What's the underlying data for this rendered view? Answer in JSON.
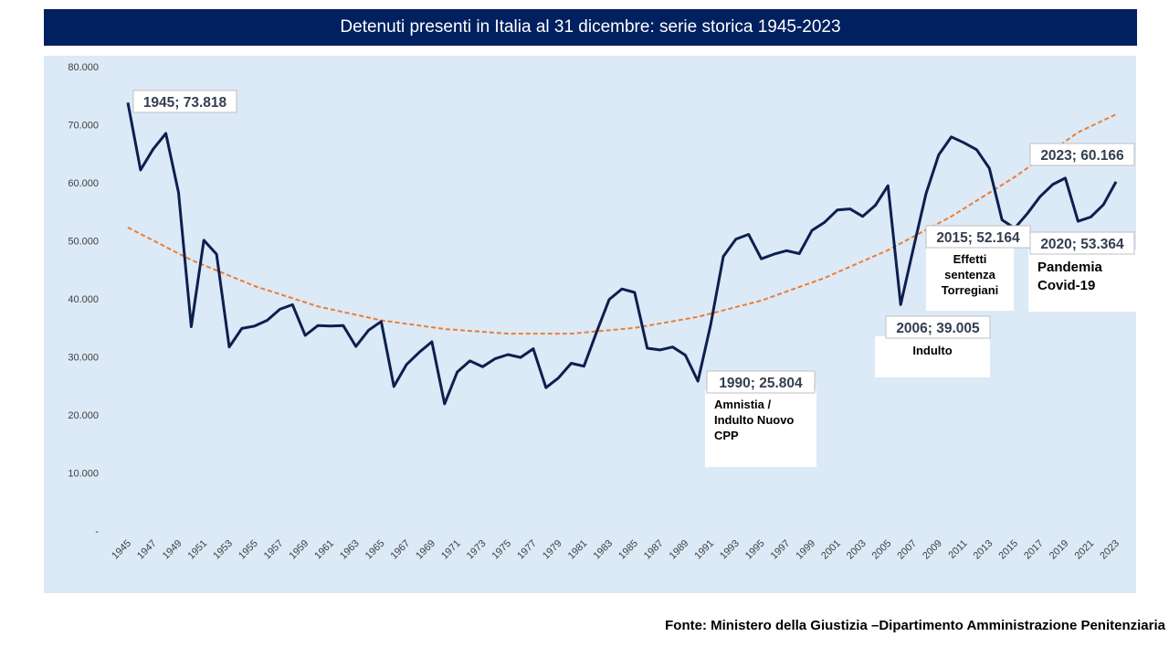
{
  "chart_data": {
    "type": "line",
    "title": "Detenuti presenti in Italia al 31 dicembre: serie storica 1945-2023",
    "source": "Fonte: Ministero della Giustizia –Dipartimento Amministrazione Penitenziaria",
    "xlabel": "",
    "ylabel": "",
    "ylim": [
      0,
      80000
    ],
    "y_ticks": [
      "-",
      "10.000",
      "20.000",
      "30.000",
      "40.000",
      "50.000",
      "60.000",
      "70.000",
      "80.000"
    ],
    "x_tick_labels": [
      "1945",
      "1947",
      "1949",
      "1951",
      "1953",
      "1955",
      "1957",
      "1959",
      "1961",
      "1963",
      "1965",
      "1967",
      "1969",
      "1971",
      "1973",
      "1975",
      "1977",
      "1979",
      "1981",
      "1983",
      "1985",
      "1987",
      "1989",
      "1991",
      "1993",
      "1995",
      "1997",
      "1999",
      "2001",
      "2003",
      "2005",
      "2007",
      "2009",
      "2011",
      "2013",
      "2015",
      "2017",
      "2019",
      "2021",
      "2023"
    ],
    "grid": false,
    "series": [
      {
        "color": "#0d1f4f",
        "x": [
          1945,
          1946,
          1947,
          1948,
          1949,
          1950,
          1951,
          1952,
          1953,
          1954,
          1955,
          1956,
          1957,
          1958,
          1959,
          1960,
          1961,
          1962,
          1963,
          1964,
          1965,
          1966,
          1967,
          1968,
          1969,
          1970,
          1971,
          1972,
          1973,
          1974,
          1975,
          1976,
          1977,
          1978,
          1979,
          1980,
          1981,
          1982,
          1983,
          1984,
          1985,
          1986,
          1987,
          1988,
          1989,
          1990,
          1991,
          1992,
          1993,
          1994,
          1995,
          1996,
          1997,
          1998,
          1999,
          2000,
          2001,
          2002,
          2003,
          2004,
          2005,
          2006,
          2007,
          2008,
          2009,
          2010,
          2011,
          2012,
          2013,
          2014,
          2015,
          2016,
          2017,
          2018,
          2019,
          2020,
          2021,
          2022,
          2023
        ],
        "y": [
          73818,
          62200,
          65800,
          68500,
          58300,
          35200,
          50100,
          47700,
          31700,
          34900,
          35300,
          36300,
          38200,
          39000,
          33700,
          35400,
          35300,
          35400,
          31800,
          34600,
          36100,
          24900,
          28700,
          30800,
          32600,
          21900,
          27400,
          29300,
          28300,
          29700,
          30400,
          29900,
          31400,
          24700,
          26400,
          28900,
          28400,
          34300,
          39900,
          41700,
          41100,
          31500,
          31200,
          31700,
          30300,
          25804,
          35500,
          47300,
          50300,
          51100,
          46900,
          47700,
          48300,
          47800,
          51800,
          53200,
          55300,
          55500,
          54200,
          56100,
          59500,
          39005,
          48700,
          58100,
          64800,
          67900,
          66900,
          65700,
          62500,
          53600,
          52164,
          54700,
          57600,
          59700,
          60800,
          53364,
          54100,
          56200,
          60166
        ]
      },
      {
        "name": "",
        "type": "trend",
        "color": "#ed7d31",
        "x": [
          1945,
          1950,
          1955,
          1960,
          1965,
          1970,
          1975,
          1980,
          1985,
          1990,
          1995,
          2000,
          2005,
          2010,
          2015,
          2020,
          2023
        ],
        "y": [
          52300,
          46700,
          42200,
          38700,
          36300,
          34800,
          34000,
          34000,
          35000,
          36900,
          39700,
          43600,
          48400,
          54200,
          61000,
          68700,
          71800
        ]
      }
    ],
    "annotations": [
      {
        "x": 1945,
        "y": 73818,
        "label": "1945;  73.818",
        "note": []
      },
      {
        "x": 1990,
        "y": 25804,
        "label": "1990; 25.804",
        "note": [
          "Amnistia /",
          "Indulto Nuovo",
          "CPP"
        ]
      },
      {
        "x": 2006,
        "y": 39005,
        "label": "2006; 39.005",
        "note": [
          "Indulto"
        ]
      },
      {
        "x": 2015,
        "y": 52164,
        "label": "2015; 52.164",
        "note": [
          "Effetti",
          "sentenza",
          "Torregiani"
        ]
      },
      {
        "x": 2020,
        "y": 53364,
        "label": "2020;  53.364",
        "note": [
          "Pandemia",
          "Covid-19"
        ]
      },
      {
        "x": 2023,
        "y": 60166,
        "label": "2023;  60.166",
        "note": []
      }
    ]
  }
}
